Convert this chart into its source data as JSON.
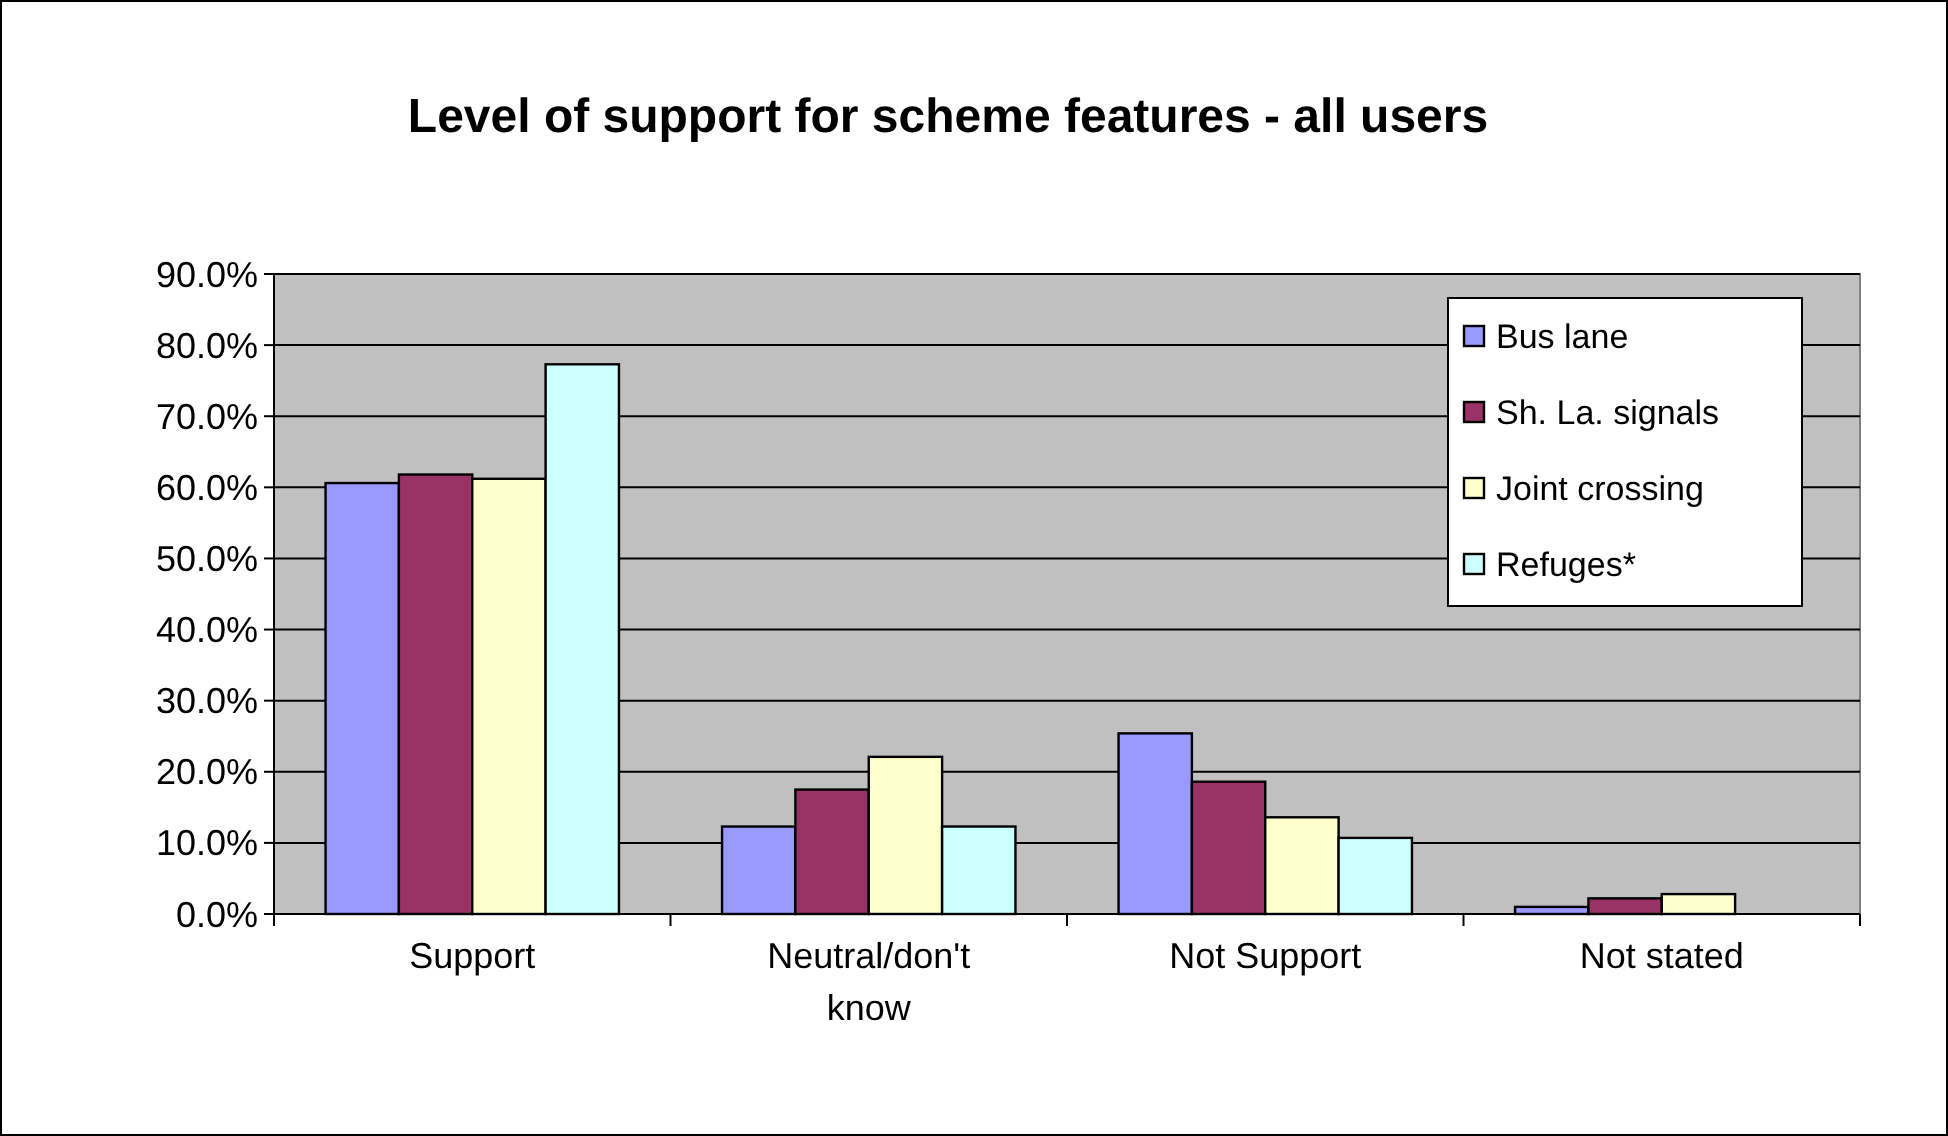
{
  "chart_data": {
    "type": "bar",
    "title": "Level of support for scheme features - all users",
    "categories": [
      "Support",
      "Neutral/don't know",
      "Not Support",
      "Not stated"
    ],
    "series": [
      {
        "name": "Bus lane",
        "color": "#9999ff",
        "values": [
          60.6,
          12.3,
          25.4,
          1.0
        ]
      },
      {
        "name": "Sh. La. signals",
        "color": "#993366",
        "values": [
          61.8,
          17.5,
          18.6,
          2.2
        ]
      },
      {
        "name": "Joint crossing",
        "color": "#ffffcc",
        "values": [
          61.2,
          22.1,
          13.6,
          2.8
        ]
      },
      {
        "name": "Refuges*",
        "color": "#ccffff",
        "values": [
          77.3,
          12.3,
          10.7,
          0
        ]
      }
    ],
    "ylim": [
      0,
      90
    ],
    "yticks": [
      {
        "value": 0,
        "label": "0.0%"
      },
      {
        "value": 10,
        "label": "10.0%"
      },
      {
        "value": 20,
        "label": "20.0%"
      },
      {
        "value": 30,
        "label": "30.0%"
      },
      {
        "value": 40,
        "label": "40.0%"
      },
      {
        "value": 50,
        "label": "50.0%"
      },
      {
        "value": 60,
        "label": "60.0%"
      },
      {
        "value": 70,
        "label": "70.0%"
      },
      {
        "value": 80,
        "label": "80.0%"
      },
      {
        "value": 90,
        "label": "90.0%"
      }
    ],
    "grid": "y",
    "legend": "top right"
  }
}
